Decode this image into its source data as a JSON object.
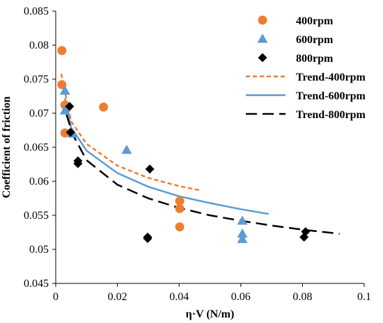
{
  "chart_data": {
    "type": "scatter",
    "xlabel": "η·V (N/m)",
    "ylabel": "Coefficient of friction",
    "xlim": [
      0,
      0.1
    ],
    "ylim": [
      0.045,
      0.085
    ],
    "x_ticks": [
      "0",
      "0.02",
      "0.04",
      "0.06",
      "0.08",
      "0.1"
    ],
    "x_tick_values": [
      0,
      0.02,
      0.04,
      0.06,
      0.08,
      0.1
    ],
    "y_ticks": [
      "0.045",
      "0.05",
      "0.055",
      "0.06",
      "0.065",
      "0.07",
      "0.075",
      "0.08",
      "0.085"
    ],
    "y_tick_values": [
      0.045,
      0.05,
      0.055,
      0.06,
      0.065,
      0.07,
      0.075,
      0.08,
      0.085
    ],
    "grid": false,
    "legend_position": "top-right",
    "series": [
      {
        "name": "400rpm",
        "marker": "circle",
        "color": "#ED7D31",
        "points": [
          [
            0.002,
            0.0792
          ],
          [
            0.002,
            0.0742
          ],
          [
            0.003,
            0.0712
          ],
          [
            0.003,
            0.0671
          ],
          [
            0.0155,
            0.0709
          ],
          [
            0.0402,
            0.0571
          ],
          [
            0.0402,
            0.056
          ],
          [
            0.0402,
            0.0533
          ]
        ]
      },
      {
        "name": "600rpm",
        "marker": "triangle",
        "color": "#5B9BD5",
        "points": [
          [
            0.003,
            0.0733
          ],
          [
            0.003,
            0.0704
          ],
          [
            0.0055,
            0.067
          ],
          [
            0.023,
            0.0646
          ],
          [
            0.0605,
            0.0542
          ],
          [
            0.0605,
            0.0523
          ],
          [
            0.0605,
            0.0515
          ]
        ]
      },
      {
        "name": "800rpm",
        "marker": "diamond",
        "color": "#000000",
        "points": [
          [
            0.0045,
            0.071
          ],
          [
            0.0048,
            0.0672
          ],
          [
            0.0072,
            0.063
          ],
          [
            0.0072,
            0.0626
          ],
          [
            0.0305,
            0.0618
          ],
          [
            0.0298,
            0.0518
          ],
          [
            0.0298,
            0.0516
          ],
          [
            0.0805,
            0.0518
          ],
          [
            0.081,
            0.0526
          ]
        ]
      }
    ],
    "trendlines": [
      {
        "name": "Trend-400rpm",
        "style": "dashed",
        "color": "#ED7D31",
        "x_range": [
          0.0018,
          0.0465
        ],
        "points": [
          [
            0.0018,
            0.0758
          ],
          [
            0.005,
            0.0688
          ],
          [
            0.01,
            0.0655
          ],
          [
            0.02,
            0.0623
          ],
          [
            0.03,
            0.0605
          ],
          [
            0.04,
            0.0593
          ],
          [
            0.0465,
            0.0587
          ]
        ]
      },
      {
        "name": "Trend-600rpm",
        "style": "solid",
        "color": "#5B9BD5",
        "x_range": [
          0.003,
          0.069
        ],
        "points": [
          [
            0.003,
            0.0722
          ],
          [
            0.005,
            0.0679
          ],
          [
            0.01,
            0.0645
          ],
          [
            0.02,
            0.0612
          ],
          [
            0.03,
            0.0592
          ],
          [
            0.04,
            0.0578
          ],
          [
            0.05,
            0.0568
          ],
          [
            0.06,
            0.0559
          ],
          [
            0.069,
            0.0552
          ]
        ]
      },
      {
        "name": "Trend-800rpm",
        "style": "long-dash",
        "color": "#000000",
        "x_range": [
          0.0035,
          0.092
        ],
        "points": [
          [
            0.0035,
            0.0698
          ],
          [
            0.0055,
            0.0669
          ],
          [
            0.01,
            0.0631
          ],
          [
            0.02,
            0.0595
          ],
          [
            0.03,
            0.0575
          ],
          [
            0.04,
            0.0561
          ],
          [
            0.05,
            0.055
          ],
          [
            0.06,
            0.0542
          ],
          [
            0.07,
            0.0535
          ],
          [
            0.08,
            0.0529
          ],
          [
            0.092,
            0.0523
          ]
        ]
      }
    ]
  }
}
